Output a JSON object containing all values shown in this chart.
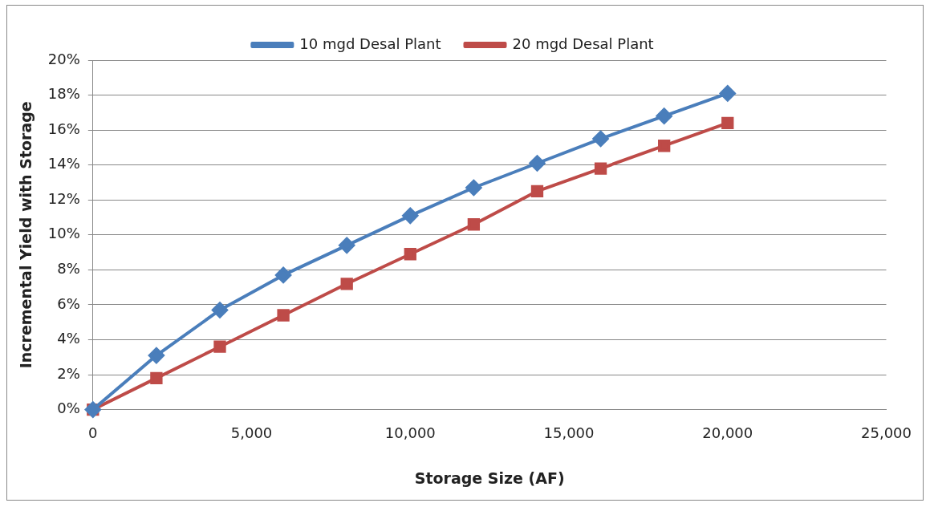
{
  "chart_data": {
    "type": "line",
    "xlabel": "Storage Size (AF)",
    "ylabel": "Incremental Yield with Storage",
    "x": [
      0,
      2000,
      4000,
      6000,
      8000,
      10000,
      12000,
      14000,
      16000,
      18000,
      20000
    ],
    "series": [
      {
        "name": "10 mgd Desal Plant",
        "color": "#4a7ebb",
        "marker": "diamond",
        "values": [
          0,
          3.1,
          5.7,
          7.7,
          9.4,
          11.1,
          12.7,
          14.1,
          15.5,
          16.8,
          18.1
        ]
      },
      {
        "name": "20 mgd Desal Plant",
        "color": "#be4b48",
        "marker": "square",
        "values": [
          0,
          1.8,
          3.6,
          5.4,
          7.2,
          8.9,
          10.6,
          12.5,
          13.8,
          15.1,
          16.4
        ]
      }
    ],
    "xlim": [
      0,
      25000
    ],
    "xticks": [
      {
        "value": 0,
        "label": "0"
      },
      {
        "value": 5000,
        "label": "5,000"
      },
      {
        "value": 10000,
        "label": "10,000"
      },
      {
        "value": 15000,
        "label": "15,000"
      },
      {
        "value": 20000,
        "label": "20,000"
      },
      {
        "value": 25000,
        "label": "25,000"
      }
    ],
    "ylim": [
      0,
      20
    ],
    "yticks": [
      {
        "value": 0,
        "label": "0%"
      },
      {
        "value": 2,
        "label": "2%"
      },
      {
        "value": 4,
        "label": "4%"
      },
      {
        "value": 6,
        "label": "6%"
      },
      {
        "value": 8,
        "label": "8%"
      },
      {
        "value": 10,
        "label": "10%"
      },
      {
        "value": 12,
        "label": "12%"
      },
      {
        "value": 14,
        "label": "14%"
      },
      {
        "value": 16,
        "label": "16%"
      },
      {
        "value": 18,
        "label": "18%"
      },
      {
        "value": 20,
        "label": "20%"
      }
    ],
    "grid": "y",
    "legend": "top",
    "line_style": "solid"
  }
}
